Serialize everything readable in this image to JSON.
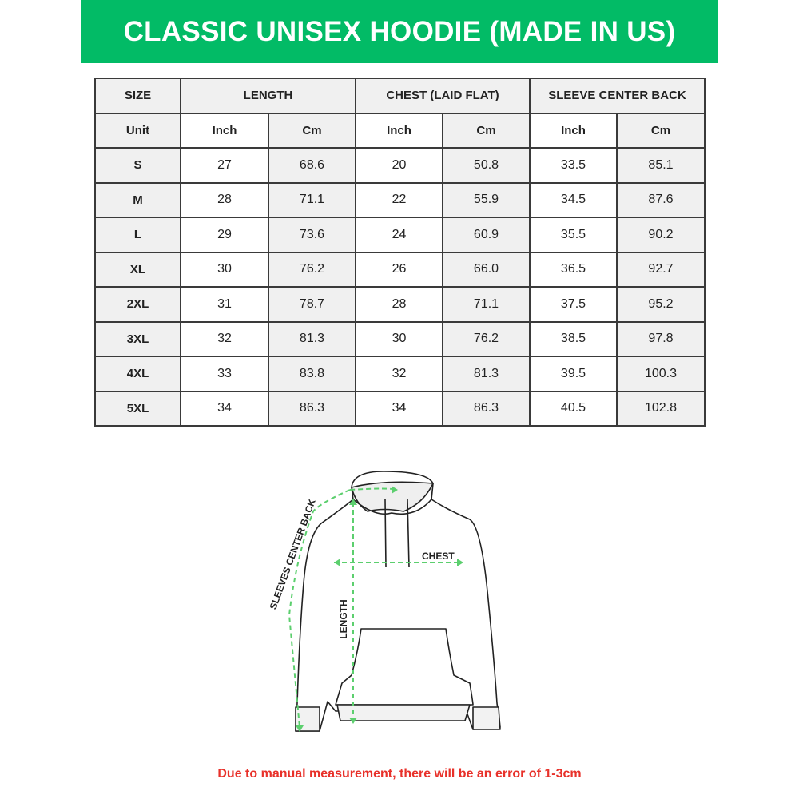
{
  "title": "CLASSIC UNISEX HOODIE (MADE IN US)",
  "table": {
    "group_headers": [
      "SIZE",
      "LENGTH",
      "CHEST (LAID FLAT)",
      "SLEEVE CENTER BACK"
    ],
    "unit_row": [
      "Unit",
      "Inch",
      "Cm",
      "Inch",
      "Cm",
      "Inch",
      "Cm"
    ],
    "rows": [
      [
        "S",
        "27",
        "68.6",
        "20",
        "50.8",
        "33.5",
        "85.1"
      ],
      [
        "M",
        "28",
        "71.1",
        "22",
        "55.9",
        "34.5",
        "87.6"
      ],
      [
        "L",
        "29",
        "73.6",
        "24",
        "60.9",
        "35.5",
        "90.2"
      ],
      [
        "XL",
        "30",
        "76.2",
        "26",
        "66.0",
        "36.5",
        "92.7"
      ],
      [
        "2XL",
        "31",
        "78.7",
        "28",
        "71.1",
        "37.5",
        "95.2"
      ],
      [
        "3XL",
        "32",
        "81.3",
        "30",
        "76.2",
        "38.5",
        "97.8"
      ],
      [
        "4XL",
        "33",
        "83.8",
        "32",
        "81.3",
        "39.5",
        "100.3"
      ],
      [
        "5XL",
        "34",
        "86.3",
        "34",
        "86.3",
        "40.5",
        "102.8"
      ]
    ]
  },
  "diagram": {
    "labels": {
      "chest": "CHEST",
      "length": "LENGTH",
      "sleeve": "SLEEVES CENTER BACK"
    },
    "measure_color": "#5ccf6e"
  },
  "note": "Due to manual measurement, there will be an error of 1-3cm",
  "colors": {
    "banner": "#02bb66",
    "note": "#e8312a",
    "shaded_cell": "#f0f0f0"
  }
}
